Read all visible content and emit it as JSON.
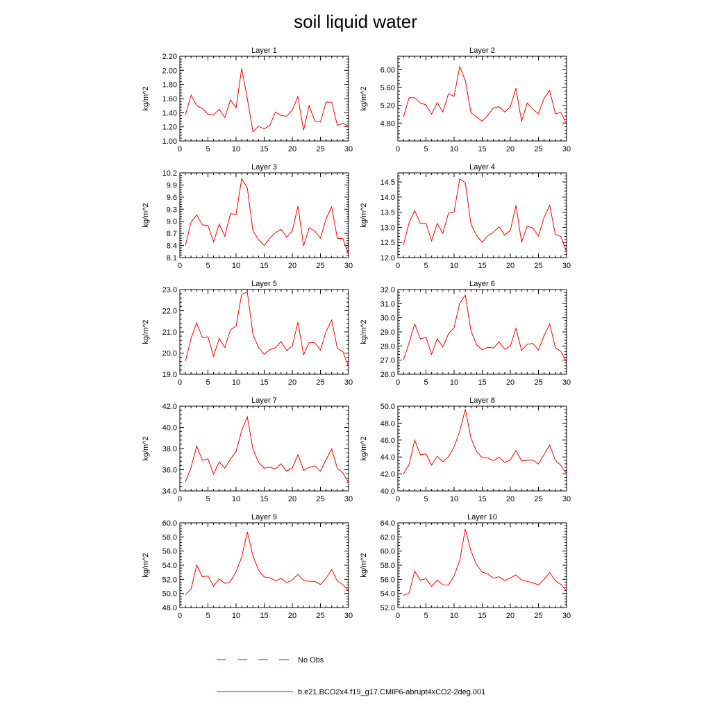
{
  "title": "soil liquid water",
  "legend": {
    "entries": [
      {
        "label": "No Obs",
        "color": "#2b3bd6",
        "style": "dashed"
      },
      {
        "label": "b.e21.BCO2x4.f19_g17.CMIP6-abrupt4xCO2-2deg.001",
        "color": "#ff0000",
        "style": "solid"
      }
    ]
  },
  "chart_data": [
    {
      "type": "line",
      "title": "Layer 1",
      "ylabel": "kg/m^2",
      "xlim": [
        0,
        30
      ],
      "xticks": [
        0,
        5,
        10,
        15,
        20,
        25,
        30
      ],
      "ylim": [
        1.0,
        2.2
      ],
      "yticks": [
        "1.00",
        "1.20",
        "1.40",
        "1.60",
        "1.80",
        "2.00",
        "2.20"
      ],
      "color": "#ff0000",
      "x": [
        1,
        2,
        3,
        4,
        5,
        6,
        7,
        8,
        9,
        10,
        11,
        12,
        13,
        14,
        15,
        16,
        17,
        18,
        19,
        20,
        21,
        22,
        23,
        24,
        25,
        26,
        27,
        28,
        29,
        30
      ],
      "values": [
        1.37,
        1.65,
        1.5,
        1.46,
        1.38,
        1.37,
        1.45,
        1.33,
        1.58,
        1.47,
        2.03,
        1.6,
        1.13,
        1.21,
        1.17,
        1.22,
        1.41,
        1.36,
        1.35,
        1.44,
        1.63,
        1.15,
        1.5,
        1.28,
        1.27,
        1.55,
        1.55,
        1.22,
        1.25,
        1.21
      ]
    },
    {
      "type": "line",
      "title": "Layer 2",
      "ylabel": "kg/m^2",
      "xlim": [
        0,
        30
      ],
      "xticks": [
        0,
        5,
        10,
        15,
        20,
        25,
        30
      ],
      "ylim": [
        4.4,
        6.3
      ],
      "yticks": [
        "4.80",
        "5.20",
        "5.60",
        "6.00"
      ],
      "color": "#ff0000",
      "x": [
        1,
        2,
        3,
        4,
        5,
        6,
        7,
        8,
        9,
        10,
        11,
        12,
        13,
        14,
        15,
        16,
        17,
        18,
        19,
        20,
        21,
        22,
        23,
        24,
        25,
        26,
        27,
        28,
        29,
        30
      ],
      "values": [
        4.94,
        5.37,
        5.37,
        5.25,
        5.21,
        5.0,
        5.26,
        5.05,
        5.46,
        5.4,
        6.07,
        5.75,
        5.03,
        4.94,
        4.84,
        4.98,
        5.14,
        5.17,
        5.05,
        5.17,
        5.58,
        4.84,
        5.25,
        5.11,
        5.01,
        5.36,
        5.53,
        5.01,
        5.04,
        4.77
      ]
    },
    {
      "type": "line",
      "title": "Layer 3",
      "ylabel": "kg/m^2",
      "xlim": [
        0,
        30
      ],
      "xticks": [
        0,
        5,
        10,
        15,
        20,
        25,
        30
      ],
      "ylim": [
        8.1,
        10.2
      ],
      "yticks": [
        "8.1",
        "8.4",
        "8.7",
        "9.0",
        "9.3",
        "9.6",
        "9.9",
        "10.2"
      ],
      "color": "#ff0000",
      "x": [
        1,
        2,
        3,
        4,
        5,
        6,
        7,
        8,
        9,
        10,
        11,
        12,
        13,
        14,
        15,
        16,
        17,
        18,
        19,
        20,
        21,
        22,
        23,
        24,
        25,
        26,
        27,
        28,
        29,
        30
      ],
      "values": [
        8.4,
        8.98,
        9.16,
        8.91,
        8.89,
        8.49,
        8.93,
        8.63,
        9.19,
        9.17,
        10.06,
        9.83,
        8.76,
        8.55,
        8.4,
        8.58,
        8.72,
        8.8,
        8.61,
        8.76,
        9.38,
        8.39,
        8.84,
        8.76,
        8.58,
        9.06,
        9.36,
        8.58,
        8.57,
        8.18
      ]
    },
    {
      "type": "line",
      "title": "Layer 4",
      "ylabel": "kg/m^2",
      "xlim": [
        0,
        30
      ],
      "xticks": [
        0,
        5,
        10,
        15,
        20,
        25,
        30
      ],
      "ylim": [
        12.0,
        14.8
      ],
      "yticks": [
        "12.0",
        "12.5",
        "13.0",
        "13.5",
        "14.0",
        "14.5"
      ],
      "color": "#ff0000",
      "x": [
        1,
        2,
        3,
        4,
        5,
        6,
        7,
        8,
        9,
        10,
        11,
        12,
        13,
        14,
        15,
        16,
        17,
        18,
        19,
        20,
        21,
        22,
        23,
        24,
        25,
        26,
        27,
        28,
        29,
        30
      ],
      "values": [
        12.42,
        13.16,
        13.55,
        13.13,
        13.13,
        12.55,
        13.13,
        12.8,
        13.47,
        13.5,
        14.6,
        14.47,
        13.1,
        12.73,
        12.51,
        12.72,
        12.84,
        13.02,
        12.74,
        12.9,
        13.73,
        12.51,
        13.04,
        12.98,
        12.71,
        13.33,
        13.73,
        12.76,
        12.7,
        12.18
      ]
    },
    {
      "type": "line",
      "title": "Layer 5",
      "ylabel": "kg/m^2",
      "xlim": [
        0,
        30
      ],
      "xticks": [
        0,
        5,
        10,
        15,
        20,
        25,
        30
      ],
      "ylim": [
        19.0,
        23.0
      ],
      "yticks": [
        "19.0",
        "20.0",
        "21.0",
        "22.0",
        "23.0"
      ],
      "color": "#ff0000",
      "x": [
        1,
        2,
        3,
        4,
        5,
        6,
        7,
        8,
        9,
        10,
        11,
        12,
        13,
        14,
        15,
        16,
        17,
        18,
        19,
        20,
        21,
        22,
        23,
        24,
        25,
        26,
        27,
        28,
        29,
        30
      ],
      "values": [
        19.62,
        20.69,
        21.43,
        20.73,
        20.77,
        19.85,
        20.69,
        20.27,
        21.1,
        21.27,
        22.78,
        22.88,
        20.89,
        20.26,
        19.94,
        20.16,
        20.25,
        20.55,
        20.12,
        20.34,
        21.46,
        19.92,
        20.5,
        20.49,
        20.14,
        21.02,
        21.56,
        20.23,
        20.06,
        19.35
      ]
    },
    {
      "type": "line",
      "title": "Layer 6",
      "ylabel": "kg/m^2",
      "xlim": [
        0,
        30
      ],
      "xticks": [
        0,
        5,
        10,
        15,
        20,
        25,
        30
      ],
      "ylim": [
        26.0,
        32.0
      ],
      "yticks": [
        "26.0",
        "27.0",
        "28.0",
        "29.0",
        "30.0",
        "31.0",
        "32.0"
      ],
      "color": "#ff0000",
      "x": [
        1,
        2,
        3,
        4,
        5,
        6,
        7,
        8,
        9,
        10,
        11,
        12,
        13,
        14,
        15,
        16,
        17,
        18,
        19,
        20,
        21,
        22,
        23,
        24,
        25,
        26,
        27,
        28,
        29,
        30
      ],
      "values": [
        27.02,
        28.24,
        29.57,
        28.51,
        28.61,
        27.41,
        28.51,
        27.93,
        28.86,
        29.3,
        31.03,
        31.6,
        29.07,
        28.1,
        27.73,
        27.91,
        27.86,
        28.29,
        27.77,
        27.98,
        29.25,
        27.68,
        28.13,
        28.18,
        27.71,
        28.74,
        29.56,
        27.9,
        27.61,
        26.85
      ]
    },
    {
      "type": "line",
      "title": "Layer 7",
      "ylabel": "kg/m^2",
      "xlim": [
        0,
        30
      ],
      "xticks": [
        0,
        5,
        10,
        15,
        20,
        25,
        30
      ],
      "ylim": [
        34.0,
        42.0
      ],
      "yticks": [
        "34.0",
        "36.0",
        "38.0",
        "40.0",
        "42.0"
      ],
      "color": "#ff0000",
      "x": [
        1,
        2,
        3,
        4,
        5,
        6,
        7,
        8,
        9,
        10,
        11,
        12,
        13,
        14,
        15,
        16,
        17,
        18,
        19,
        20,
        21,
        22,
        23,
        24,
        25,
        26,
        27,
        28,
        29,
        30
      ],
      "values": [
        34.85,
        36.22,
        38.23,
        36.9,
        37.02,
        35.59,
        36.74,
        36.15,
        37.0,
        37.73,
        39.69,
        41.0,
        37.96,
        36.7,
        36.15,
        36.24,
        36.07,
        36.56,
        35.86,
        36.16,
        37.42,
        35.93,
        36.23,
        36.36,
        35.86,
        36.96,
        37.96,
        36.13,
        35.69,
        34.78
      ]
    },
    {
      "type": "line",
      "title": "Layer 8",
      "ylabel": "kg/m^2",
      "xlim": [
        0,
        30
      ],
      "xticks": [
        0,
        5,
        10,
        15,
        20,
        25,
        30
      ],
      "ylim": [
        40.0,
        50.0
      ],
      "yticks": [
        "40.0",
        "42.0",
        "44.0",
        "46.0",
        "48.0",
        "50.0"
      ],
      "color": "#ff0000",
      "x": [
        1,
        2,
        3,
        4,
        5,
        6,
        7,
        8,
        9,
        10,
        11,
        12,
        13,
        14,
        15,
        16,
        17,
        18,
        19,
        20,
        21,
        22,
        23,
        24,
        25,
        26,
        27,
        28,
        29,
        30
      ],
      "values": [
        42.01,
        43.11,
        45.98,
        44.28,
        44.38,
        43.04,
        44.1,
        43.43,
        44.03,
        45.19,
        47.05,
        49.63,
        46.23,
        44.65,
        43.93,
        43.89,
        43.56,
        43.98,
        43.35,
        43.66,
        44.77,
        43.54,
        43.61,
        43.64,
        43.18,
        44.3,
        45.42,
        43.61,
        43.0,
        42.04
      ]
    },
    {
      "type": "line",
      "title": "Layer 9",
      "ylabel": "kg/m^2",
      "xlim": [
        0,
        30
      ],
      "xticks": [
        0,
        5,
        10,
        15,
        20,
        25,
        30
      ],
      "ylim": [
        48.0,
        60.0
      ],
      "yticks": [
        "48.0",
        "50.0",
        "52.0",
        "54.0",
        "56.0",
        "58.0",
        "60.0"
      ],
      "color": "#ff0000",
      "x": [
        1,
        2,
        3,
        4,
        5,
        6,
        7,
        8,
        9,
        10,
        11,
        12,
        13,
        14,
        15,
        16,
        17,
        18,
        19,
        20,
        21,
        22,
        23,
        24,
        25,
        26,
        27,
        28,
        29,
        30
      ],
      "values": [
        49.84,
        50.61,
        54.01,
        52.37,
        52.47,
        51.03,
        52.03,
        51.42,
        51.67,
        53.09,
        55.15,
        58.72,
        55.31,
        53.31,
        52.34,
        52.23,
        51.8,
        52.13,
        51.53,
        51.91,
        52.7,
        51.84,
        51.73,
        51.71,
        51.26,
        52.17,
        53.39,
        51.77,
        51.24,
        50.34
      ]
    },
    {
      "type": "line",
      "title": "Layer 10",
      "ylabel": "kg/m^2",
      "xlim": [
        0,
        30
      ],
      "xticks": [
        0,
        5,
        10,
        15,
        20,
        25,
        30
      ],
      "ylim": [
        52.0,
        64.0
      ],
      "yticks": [
        "52.0",
        "54.0",
        "56.0",
        "58.0",
        "60.0",
        "62.0",
        "64.0"
      ],
      "color": "#ff0000",
      "x": [
        1,
        2,
        3,
        4,
        5,
        6,
        7,
        8,
        9,
        10,
        11,
        12,
        13,
        14,
        15,
        16,
        17,
        18,
        19,
        20,
        21,
        22,
        23,
        24,
        25,
        26,
        27,
        28,
        29,
        30
      ],
      "values": [
        53.7,
        54.05,
        57.13,
        55.89,
        56.09,
        55.01,
        55.89,
        55.23,
        55.16,
        56.49,
        58.7,
        63.12,
        60.01,
        58.05,
        57.03,
        56.73,
        56.16,
        56.36,
        55.81,
        56.2,
        56.63,
        55.89,
        55.71,
        55.5,
        55.2,
        56.0,
        56.98,
        55.81,
        55.28,
        54.3
      ]
    }
  ]
}
